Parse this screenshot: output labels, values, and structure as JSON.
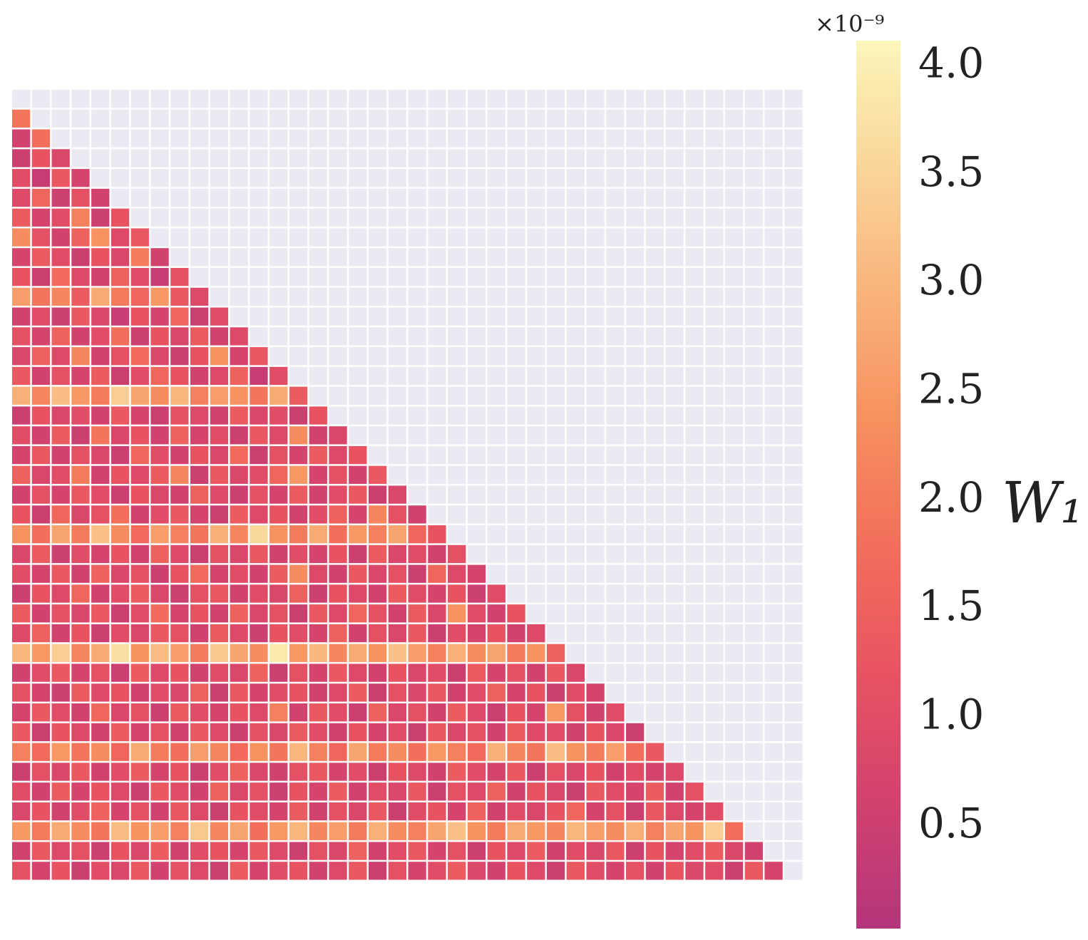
{
  "chart_data": {
    "type": "heatmap",
    "values": [
      [],
      [
        1.9
      ],
      [
        0.6,
        1.8
      ],
      [
        0.5,
        1.2,
        0.8
      ],
      [
        1.0,
        0.4,
        1.3,
        0.7
      ],
      [
        0.9,
        1.6,
        0.5,
        1.1,
        0.6
      ],
      [
        1.4,
        0.7,
        1.0,
        2.1,
        0.5,
        1.2
      ],
      [
        2.3,
        1.1,
        0.6,
        1.5,
        2.4,
        0.9,
        1.3
      ],
      [
        0.7,
        1.4,
        1.0,
        0.5,
        1.2,
        0.8,
        2.0,
        0.6
      ],
      [
        1.2,
        0.5,
        1.7,
        0.9,
        0.6,
        1.5,
        1.0,
        0.4,
        1.1
      ],
      [
        2.6,
        1.9,
        2.2,
        1.4,
        2.8,
        2.0,
        1.6,
        2.5,
        1.3,
        0.9
      ],
      [
        0.6,
        1.0,
        0.5,
        1.3,
        0.8,
        0.4,
        1.2,
        0.7,
        1.6,
        0.5,
        1.0
      ],
      [
        1.1,
        0.7,
        1.5,
        0.6,
        1.0,
        1.8,
        0.5,
        1.2,
        0.8,
        1.4,
        0.6,
        0.9
      ],
      [
        0.8,
        1.5,
        0.9,
        2.2,
        0.6,
        1.1,
        1.7,
        0.8,
        0.5,
        1.2,
        2.4,
        0.7,
        1.3
      ],
      [
        1.3,
        0.6,
        1.1,
        0.7,
        1.4,
        0.5,
        1.0,
        1.6,
        1.2,
        0.6,
        0.9,
        1.5,
        0.4,
        1.0
      ],
      [
        2.9,
        2.2,
        3.1,
        2.5,
        2.0,
        3.4,
        2.7,
        2.3,
        3.0,
        2.1,
        2.6,
        2.4,
        1.9,
        2.8,
        1.4
      ],
      [
        0.5,
        1.2,
        0.8,
        1.0,
        0.6,
        1.3,
        0.7,
        0.5,
        1.1,
        0.9,
        0.6,
        1.4,
        0.8,
        1.0,
        0.5,
        1.2
      ],
      [
        1.0,
        0.6,
        1.4,
        0.5,
        1.9,
        0.8,
        1.2,
        0.6,
        1.5,
        0.7,
        1.0,
        0.5,
        1.3,
        0.9,
        2.3,
        0.6,
        0.8
      ],
      [
        0.7,
        1.3,
        0.6,
        1.1,
        0.8,
        0.5,
        1.6,
        1.0,
        0.6,
        1.2,
        0.8,
        1.7,
        0.5,
        1.1,
        0.7,
        1.4,
        0.9,
        1.2
      ],
      [
        1.5,
        0.8,
        1.0,
        2.0,
        0.6,
        1.2,
        0.9,
        1.4,
        2.2,
        0.5,
        1.3,
        0.8,
        1.0,
        1.6,
        2.5,
        0.7,
        1.1,
        0.6,
        1.3
      ],
      [
        0.6,
        1.1,
        0.7,
        1.3,
        1.0,
        0.5,
        1.2,
        0.8,
        0.6,
        1.5,
        0.9,
        0.5,
        1.1,
        0.7,
        1.4,
        0.6,
        1.0,
        1.3,
        0.5,
        0.8
      ],
      [
        1.2,
        0.5,
        1.6,
        0.8,
        1.1,
        1.8,
        0.6,
        1.0,
        1.3,
        0.7,
        0.5,
        1.4,
        0.9,
        1.2,
        0.6,
        1.0,
        1.5,
        0.7,
        2.2,
        1.1,
        0.6
      ],
      [
        2.4,
        1.8,
        2.7,
        2.0,
        3.2,
        2.3,
        1.7,
        2.6,
        2.1,
        1.9,
        2.9,
        2.2,
        3.6,
        2.4,
        2.0,
        2.8,
        1.8,
        2.5,
        2.1,
        2.7,
        1.6,
        1.2
      ],
      [
        0.8,
        1.4,
        0.5,
        1.0,
        0.7,
        1.2,
        0.6,
        1.5,
        0.9,
        0.5,
        1.1,
        0.8,
        1.3,
        0.6,
        1.0,
        0.7,
        1.2,
        0.5,
        1.4,
        0.8,
        1.0,
        0.6,
        1.1
      ],
      [
        1.0,
        0.7,
        1.3,
        0.6,
        1.5,
        0.8,
        1.1,
        0.5,
        1.2,
        1.7,
        0.7,
        1.0,
        0.6,
        1.4,
        2.3,
        0.9,
        0.6,
        1.3,
        0.8,
        1.1,
        0.5,
        1.6,
        0.9,
        0.7
      ],
      [
        0.5,
        1.2,
        0.9,
        1.6,
        0.6,
        1.0,
        1.4,
        0.8,
        0.5,
        1.1,
        1.3,
        0.6,
        1.0,
        0.8,
        1.5,
        0.5,
        1.2,
        0.9,
        0.6,
        1.4,
        1.0,
        0.7,
        1.2,
        0.5,
        1.0
      ],
      [
        1.4,
        0.6,
        1.1,
        0.8,
        1.3,
        0.5,
        1.0,
        1.7,
        0.7,
        1.2,
        0.6,
        1.5,
        0.8,
        1.1,
        0.5,
        1.3,
        0.9,
        1.6,
        1.1,
        0.6,
        1.4,
        0.8,
        2.4,
        1.0,
        0.6,
        1.2
      ],
      [
        0.9,
        1.5,
        0.6,
        1.2,
        0.5,
        1.0,
        0.8,
        1.3,
        1.1,
        0.6,
        1.4,
        0.9,
        0.5,
        1.2,
        1.0,
        0.7,
        1.5,
        0.6,
        1.1,
        0.8,
        1.3,
        0.5,
        1.0,
        0.7,
        1.2,
        0.6,
        0.9
      ],
      [
        3.0,
        2.5,
        3.4,
        2.2,
        2.8,
        3.7,
        2.4,
        3.1,
        2.6,
        2.0,
        3.3,
        2.7,
        2.3,
        3.9,
        2.5,
        3.0,
        2.2,
        2.8,
        2.4,
        3.2,
        2.6,
        2.1,
        2.9,
        2.3,
        2.7,
        2.0,
        2.4,
        1.5
      ],
      [
        0.6,
        1.0,
        1.3,
        0.7,
        1.1,
        0.5,
        1.4,
        0.9,
        1.2,
        0.6,
        1.0,
        0.8,
        1.5,
        0.5,
        1.1,
        0.7,
        1.3,
        0.9,
        0.6,
        1.2,
        0.8,
        1.0,
        0.5,
        1.4,
        0.7,
        1.1,
        0.6,
        1.3,
        0.8
      ],
      [
        1.1,
        0.7,
        0.5,
        1.4,
        0.9,
        1.2,
        0.6,
        1.0,
        0.8,
        1.5,
        0.5,
        1.3,
        0.7,
        1.0,
        1.2,
        0.6,
        0.9,
        1.4,
        0.5,
        1.1,
        0.8,
        1.3,
        0.6,
        1.0,
        1.5,
        0.7,
        1.2,
        0.5,
        1.0,
        0.7
      ],
      [
        0.7,
        1.3,
        1.0,
        0.6,
        1.6,
        0.8,
        1.1,
        0.5,
        1.4,
        1.0,
        0.7,
        1.2,
        0.9,
        2.1,
        0.6,
        1.3,
        1.0,
        0.5,
        1.5,
        0.8,
        1.1,
        0.6,
        1.4,
        0.9,
        0.5,
        1.2,
        0.7,
        2.5,
        1.1,
        0.6,
        1.0
      ],
      [
        1.3,
        0.5,
        1.2,
        0.9,
        0.6,
        1.4,
        0.7,
        1.1,
        0.6,
        1.3,
        0.9,
        0.5,
        1.1,
        0.8,
        1.4,
        1.0,
        0.6,
        1.2,
        0.7,
        1.0,
        0.5,
        1.3,
        0.8,
        1.1,
        0.6,
        1.4,
        0.9,
        1.0,
        0.6,
        1.2,
        0.8,
        0.5
      ],
      [
        2.1,
        1.7,
        2.5,
        1.9,
        2.3,
        1.6,
        2.8,
        2.0,
        1.8,
        2.6,
        2.2,
        1.7,
        2.4,
        1.9,
        3.0,
        2.1,
        1.6,
        2.7,
        2.0,
        2.3,
        1.8,
        2.5,
        2.1,
        1.7,
        2.9,
        2.2,
        1.9,
        3.1,
        2.4,
        2.0,
        2.6,
        1.8,
        1.3
      ],
      [
        0.5,
        1.1,
        0.8,
        1.3,
        0.6,
        1.0,
        1.4,
        0.7,
        1.2,
        0.5,
        1.0,
        1.5,
        0.8,
        0.6,
        1.1,
        1.3,
        0.7,
        1.0,
        0.5,
        1.2,
        0.9,
        0.6,
        1.4,
        1.0,
        0.7,
        1.3,
        0.5,
        1.1,
        0.8,
        1.2,
        0.6,
        1.0,
        0.7,
        0.9
      ],
      [
        1.0,
        0.6,
        1.4,
        0.7,
        1.2,
        0.9,
        0.5,
        1.3,
        1.0,
        0.6,
        1.5,
        0.8,
        1.1,
        0.5,
        1.2,
        0.7,
        1.4,
        0.6,
        1.0,
        0.8,
        1.3,
        0.5,
        1.1,
        0.9,
        1.5,
        0.6,
        1.2,
        0.8,
        0.5,
        1.3,
        1.0,
        0.7,
        1.4,
        0.6,
        1.1
      ],
      [
        0.8,
        1.2,
        0.6,
        1.0,
        1.5,
        0.7,
        1.1,
        0.6,
        1.3,
        0.9,
        0.5,
        1.2,
        1.0,
        0.7,
        1.4,
        0.6,
        1.1,
        0.8,
        1.3,
        0.5,
        1.0,
        1.2,
        0.7,
        1.5,
        0.6,
        1.0,
        0.8,
        1.2,
        1.6,
        0.7,
        1.1,
        0.5,
        1.3,
        0.9,
        0.7,
        1.0
      ],
      [
        2.5,
        2.0,
        2.8,
        2.3,
        1.9,
        3.1,
        2.4,
        2.6,
        2.1,
        3.3,
        2.2,
        2.7,
        1.8,
        2.5,
        3.0,
        2.2,
        2.6,
        2.0,
        2.9,
        2.3,
        2.1,
        2.7,
        3.2,
        2.4,
        2.0,
        2.8,
        2.5,
        2.2,
        3.0,
        2.6,
        2.3,
        2.9,
        2.1,
        2.7,
        2.4,
        3.4,
        1.8
      ],
      [
        0.6,
        1.3,
        0.9,
        1.1,
        0.5,
        1.2,
        0.8,
        1.4,
        0.6,
        1.0,
        1.2,
        0.7,
        1.3,
        0.9,
        0.5,
        1.1,
        0.8,
        1.5,
        0.6,
        1.0,
        1.3,
        0.7,
        1.1,
        0.5,
        1.2,
        0.9,
        1.4,
        0.6,
        1.0,
        0.8,
        1.3,
        0.5,
        1.2,
        0.7,
        1.0,
        1.4,
        0.8,
        0.6
      ],
      [
        1.1,
        0.7,
        1.2,
        0.5,
        1.0,
        0.8,
        1.3,
        0.6,
        1.1,
        0.9,
        0.5,
        1.4,
        0.7,
        1.0,
        1.2,
        0.6,
        0.9,
        1.3,
        0.5,
        1.1,
        0.7,
        1.0,
        1.4,
        0.8,
        0.6,
        1.2,
        0.9,
        0.5,
        1.3,
        1.0,
        0.7,
        1.1,
        0.6,
        1.2,
        0.8,
        1.0,
        0.5,
        1.3,
        0.7
      ]
    ],
    "empty_color": "#eaeaf2",
    "colormap": [
      "#b3357b",
      "#d2426f",
      "#e85362",
      "#f26e5b",
      "#f7905f",
      "#f9b37a",
      "#fad59a",
      "#fcf6ba"
    ],
    "clim": [
      0.03,
      4.12
    ],
    "cticks": [
      {
        "value": 0.5,
        "label": "0.5"
      },
      {
        "value": 1,
        "label": "1.0"
      },
      {
        "value": 1.5,
        "label": "1.5"
      },
      {
        "value": 2,
        "label": "2.0"
      },
      {
        "value": 2.5,
        "label": "2.5"
      },
      {
        "value": 3,
        "label": "3.0"
      },
      {
        "value": 3.5,
        "label": "3.5"
      },
      {
        "value": 4,
        "label": "4.0"
      }
    ],
    "colorbar_offset": "×10⁻⁹",
    "colorbar_label": "W₁"
  }
}
